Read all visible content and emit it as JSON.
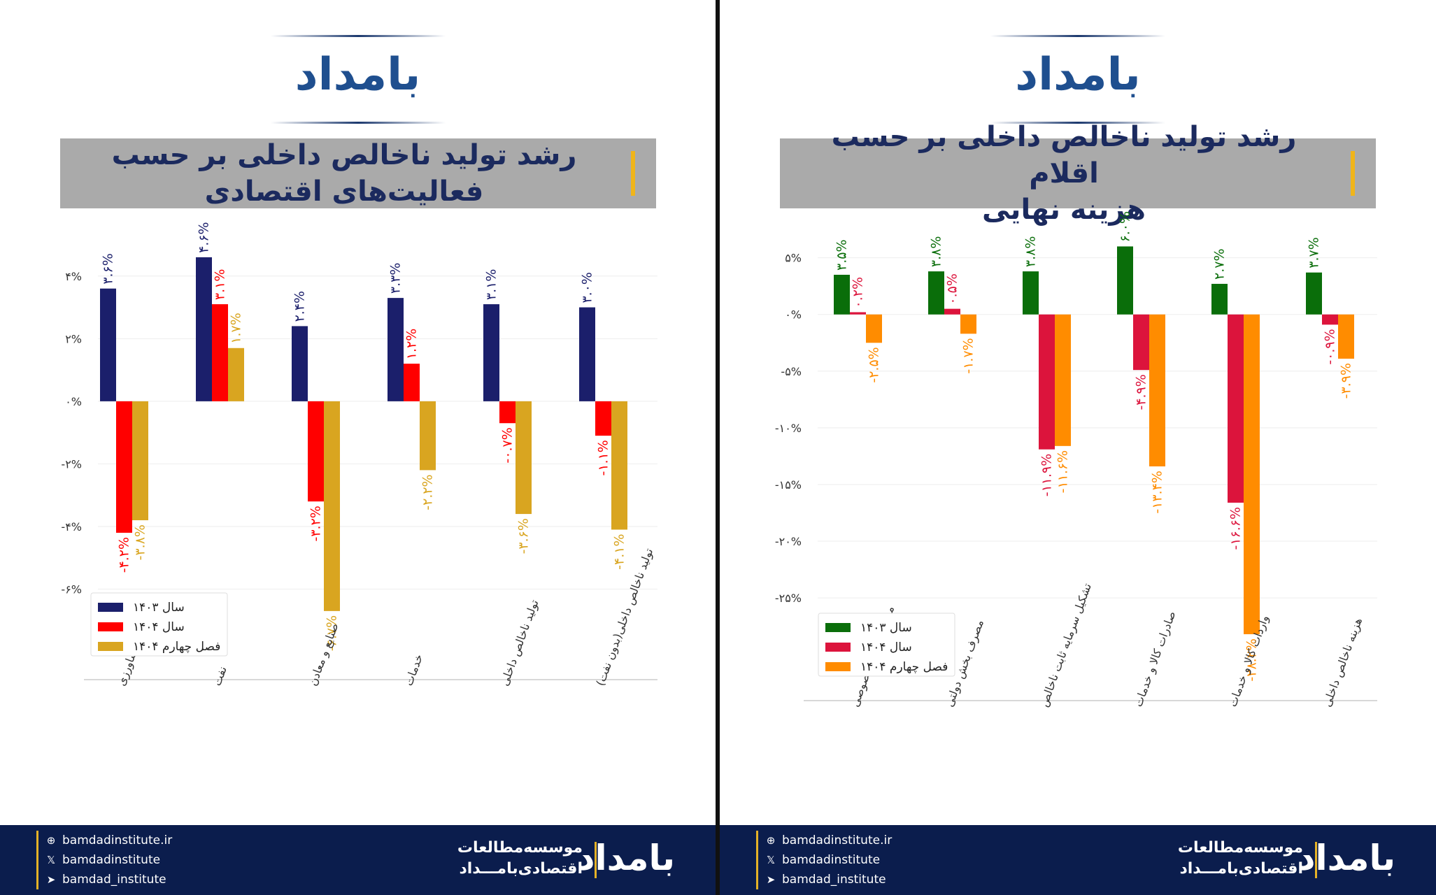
{
  "panels": [
    {
      "logo": "بامداد",
      "title_line1": "رشد تولید ناخالص داخلی بر حسب",
      "title_line2": "فعالیت‌های اقتصادی",
      "footer": {
        "site": "bamdadinstitute.ir",
        "x_handle": "bamdadinstitute",
        "telegram": "bamdad_institute",
        "org_line1": "موسسه‌مطالعات",
        "org_line2": "اقتصادی‌بامـــداد",
        "logo": "بامداد"
      }
    },
    {
      "logo": "بامداد",
      "title_line1": "رشد تولید ناخالص داخلی بر حسب اقلام",
      "title_line2": "هزینه نهایی",
      "footer": {
        "site": "bamdadinstitute.ir",
        "x_handle": "bamdadinstitute",
        "telegram": "bamdad_institute",
        "org_line1": "موسسه‌مطالعات",
        "org_line2": "اقتصادی‌بامـــداد",
        "logo": "بامداد"
      }
    }
  ],
  "chart_data": [
    {
      "type": "bar",
      "title": "رشد تولید ناخالص داخلی بر حسب فعالیت‌های اقتصادی",
      "categories": [
        "کشاورزی",
        "نفت",
        "صنایع و معادن",
        "خدمات",
        "تولید ناخالص داخلی",
        "تولید ناخالص داخلی(بدون نفت)"
      ],
      "series": [
        {
          "name": "سال ۱۴۰۳",
          "color": "#1b1f6b",
          "values": [
            3.6,
            4.6,
            2.4,
            3.3,
            3.1,
            3.0
          ],
          "labels": [
            "۳.۶%",
            "۴.۶%",
            "۲.۴%",
            "۳.۳%",
            "۳.۱%",
            "۳.۰%"
          ]
        },
        {
          "name": "سال ۱۴۰۴",
          "color": "#ff0000",
          "values": [
            -4.2,
            3.1,
            -3.2,
            1.2,
            -0.7,
            -1.1
          ],
          "labels": [
            "-۴.۲%",
            "۳.۱%",
            "-۳.۲%",
            "۱.۲%",
            "-۰.۷%",
            "-۱.۱%"
          ]
        },
        {
          "name": "فصل چهارم ۱۴۰۴",
          "color": "#d9a520",
          "values": [
            -3.8,
            1.7,
            -6.7,
            -2.2,
            -3.6,
            -4.1
          ],
          "labels": [
            "-۳.۸%",
            "۱.۷%",
            "-۶.۷%",
            "-۲.۲%",
            "-۳.۶%",
            "-۴.۱%"
          ]
        }
      ],
      "yticks": [
        4,
        2,
        0,
        -2,
        -4,
        -6
      ],
      "ytick_labels": [
        "۴%",
        "۲%",
        "۰%",
        "-۲%",
        "-۴%",
        "-۶%"
      ],
      "ylim": [
        -8.4,
        5.0
      ],
      "grid": true,
      "legend_position": "lower-left"
    },
    {
      "type": "bar",
      "title": "رشد تولید ناخالص داخلی بر حسب اقلام هزینه نهایی",
      "categories": [
        "مصرف بخش خصوصی",
        "مصرف بخش دولتی",
        "تشکیل سرمایه ثابت ناخالص",
        "صادرات کالا و خدمات",
        "واردات کالا و خدمات",
        "هزینه ناخالص داخلی"
      ],
      "series": [
        {
          "name": "سال ۱۴۰۳",
          "color": "#0a6e0a",
          "values": [
            3.5,
            3.8,
            3.8,
            6.0,
            2.7,
            3.7
          ],
          "labels": [
            "۳.۵%",
            "۳.۸%",
            "۳.۸%",
            "۶.۰%",
            "۲.۷%",
            "۳.۷%"
          ]
        },
        {
          "name": "سال ۱۴۰۴",
          "color": "#dc143c",
          "values": [
            0.2,
            0.5,
            -11.9,
            -4.9,
            -16.6,
            -0.9
          ],
          "labels": [
            "۰.۲%",
            "۰.۵%",
            "-۱۱.۹%",
            "-۴.۹%",
            "-۱۶.۶%",
            "-۰.۹%"
          ]
        },
        {
          "name": "فصل چهارم ۱۴۰۴",
          "color": "#ff8c00",
          "values": [
            -2.5,
            -1.7,
            -11.6,
            -13.4,
            -28.2,
            -3.9
          ],
          "labels": [
            "-۲.۵%",
            "-۱.۷%",
            "-۱۱.۶%",
            "-۱۳.۴%",
            "-۲۸.۲%",
            "-۳.۹%"
          ]
        }
      ],
      "yticks": [
        5,
        0,
        -5,
        -10,
        -15,
        -20,
        -25
      ],
      "ytick_labels": [
        "۵%",
        "۰%",
        "-۵%",
        "-۱۰%",
        "-۱۵%",
        "-۲۰%",
        "-۲۵%"
      ],
      "ylim": [
        -32.7,
        8.0
      ],
      "grid": true,
      "legend_position": "lower-left"
    }
  ]
}
